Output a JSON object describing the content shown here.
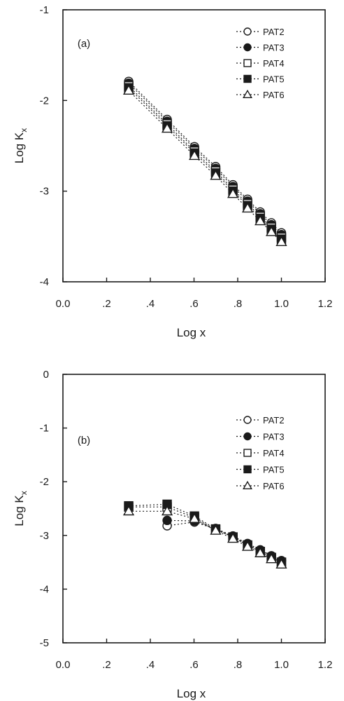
{
  "chart_data": [
    {
      "type": "line",
      "panel_label": "(a)",
      "xlabel": "Log x",
      "ylabel_main": "Log K",
      "ylabel_sub": "x",
      "xlim": [
        0.0,
        1.2
      ],
      "ylim": [
        -4,
        -1
      ],
      "xticks": [
        0.0,
        0.2,
        0.4,
        0.6,
        0.8,
        1.0,
        1.2
      ],
      "xtick_labels": [
        "0.0",
        ".2",
        ".4",
        ".6",
        ".8",
        "1.0",
        "1.2"
      ],
      "yticks": [
        -4,
        -3,
        -2,
        -1
      ],
      "ytick_labels": [
        "-4",
        "-3",
        "-2",
        "-1"
      ],
      "legend_position": "top-right",
      "grid": false,
      "x": [
        0.301,
        0.477,
        0.602,
        0.699,
        0.778,
        0.845,
        0.903,
        0.954,
        1.0
      ],
      "series": [
        {
          "name": "PAT2",
          "marker": "circle-open",
          "values": [
            -1.79,
            -2.21,
            -2.51,
            -2.73,
            -2.93,
            -3.09,
            -3.23,
            -3.35,
            -3.46
          ]
        },
        {
          "name": "PAT3",
          "marker": "circle-filled",
          "values": [
            -1.81,
            -2.23,
            -2.53,
            -2.75,
            -2.95,
            -3.11,
            -3.25,
            -3.37,
            -3.48
          ]
        },
        {
          "name": "PAT4",
          "marker": "square-open",
          "values": [
            -1.84,
            -2.26,
            -2.56,
            -2.78,
            -2.98,
            -3.14,
            -3.28,
            -3.4,
            -3.51
          ]
        },
        {
          "name": "PAT5",
          "marker": "square-filled",
          "values": [
            -1.86,
            -2.28,
            -2.58,
            -2.8,
            -3.0,
            -3.16,
            -3.3,
            -3.42,
            -3.53
          ]
        },
        {
          "name": "PAT6",
          "marker": "triangle-open",
          "values": [
            -1.89,
            -2.31,
            -2.61,
            -2.83,
            -3.03,
            -3.19,
            -3.33,
            -3.45,
            -3.56
          ]
        }
      ]
    },
    {
      "type": "line",
      "panel_label": "(b)",
      "xlabel": "Log x",
      "ylabel_main": "Log K",
      "ylabel_sub": "x",
      "xlim": [
        0.0,
        1.2
      ],
      "ylim": [
        -5,
        0
      ],
      "xticks": [
        0.0,
        0.2,
        0.4,
        0.6,
        0.8,
        1.0,
        1.2
      ],
      "xtick_labels": [
        "0.0",
        ".2",
        ".4",
        ".6",
        ".8",
        "1.0",
        "1.2"
      ],
      "yticks": [
        -5,
        -4,
        -3,
        -2,
        -1,
        0
      ],
      "ytick_labels": [
        "-5",
        "-4",
        "-3",
        "-2",
        "-1",
        "0"
      ],
      "legend_position": "top-right",
      "grid": false,
      "x": [
        0.301,
        0.477,
        0.602,
        0.699,
        0.778,
        0.845,
        0.903,
        0.954,
        1.0
      ],
      "series": [
        {
          "name": "PAT2",
          "marker": "circle-open",
          "values": [
            null,
            -2.82,
            -2.75,
            -2.88,
            -3.02,
            -3.16,
            -3.27,
            -3.38,
            -3.47
          ]
        },
        {
          "name": "PAT3",
          "marker": "circle-filled",
          "values": [
            null,
            -2.72,
            -2.73,
            -2.87,
            -3.01,
            -3.15,
            -3.27,
            -3.38,
            -3.47
          ]
        },
        {
          "name": "PAT4",
          "marker": "square-open",
          "values": [
            -2.47,
            -2.47,
            -2.67,
            -2.89,
            -3.03,
            -3.18,
            -3.3,
            -3.41,
            -3.5
          ]
        },
        {
          "name": "PAT5",
          "marker": "square-filled",
          "values": [
            -2.45,
            -2.42,
            -2.64,
            -2.88,
            -3.03,
            -3.18,
            -3.3,
            -3.41,
            -3.5
          ]
        },
        {
          "name": "PAT6",
          "marker": "triangle-open",
          "values": [
            -2.55,
            -2.55,
            -2.69,
            -2.91,
            -3.06,
            -3.21,
            -3.33,
            -3.44,
            -3.54
          ]
        }
      ]
    }
  ]
}
